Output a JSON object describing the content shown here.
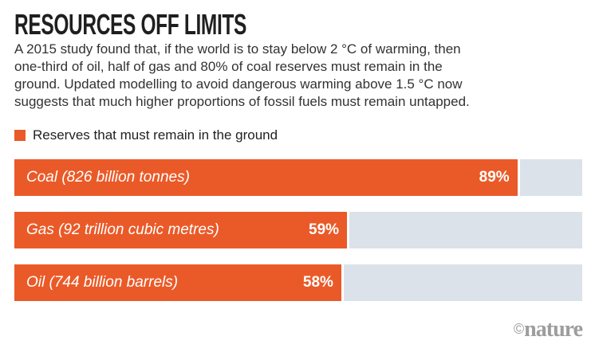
{
  "header": {
    "title": "RESOURCES OFF LIMITS",
    "description_lines": [
      "A 2015 study found that, if the world is to stay below 2 °C of warming, then",
      "one-third of oil, half of gas and 80% of coal reserves must remain in the",
      "ground. Updated modelling to avoid dangerous warming above 1.5 °C now",
      "suggests that much higher proportions of fossil fuels must remain untapped."
    ]
  },
  "legend": {
    "label": "Reserves that must remain in the ground"
  },
  "chart_data": {
    "type": "bar",
    "orientation": "horizontal",
    "title": "Resources off limits",
    "xlabel": "",
    "ylabel": "",
    "xlim": [
      0,
      100
    ],
    "unit": "%",
    "grid": false,
    "legend_position": "top-left",
    "legend": [
      "Reserves that must remain in the ground"
    ],
    "categories": [
      "Coal (826 billion tonnes)",
      "Gas (92 trillion cubic metres)",
      "Oil (744 billion barrels)"
    ],
    "values": [
      89,
      59,
      58
    ],
    "bars": [
      {
        "label": "Coal (826 billion tonnes)",
        "value": 89,
        "pct_label": "89%"
      },
      {
        "label": "Gas (92 trillion cubic metres)",
        "value": 59,
        "pct_label": "59%"
      },
      {
        "label": "Oil (744 billion barrels)",
        "value": 58,
        "pct_label": "58%"
      }
    ],
    "colors": {
      "bar_fill": "#ea5a28",
      "track": "#dce2ea",
      "title_text": "#1f1f1f",
      "body_text": "#323232",
      "bar_text": "#ffffff",
      "credit_text": "#9d9d9d"
    }
  },
  "footer": {
    "credit_symbol": "©",
    "credit": "nature"
  }
}
